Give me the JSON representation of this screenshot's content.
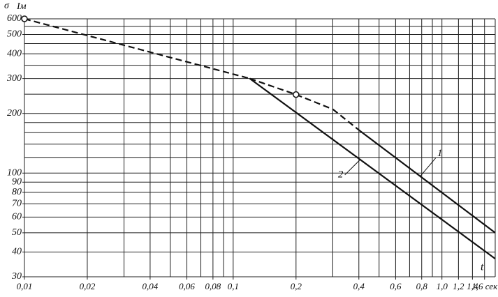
{
  "chart_data": {
    "type": "line",
    "y_axis_label": "σ",
    "y_axis_label2": "Iм",
    "x_axis_label": "t",
    "xscale": "log",
    "yscale": "log",
    "grid": true,
    "xlim": [
      0.01,
      1.8
    ],
    "ylim": [
      30,
      600
    ],
    "xticks": [
      {
        "value": 0.01,
        "label": "0,01"
      },
      {
        "value": 0.02,
        "label": "0,02"
      },
      {
        "value": 0.04,
        "label": "0,04"
      },
      {
        "value": 0.06,
        "label": "0,06"
      },
      {
        "value": 0.08,
        "label": "0,08"
      },
      {
        "value": 0.1,
        "label": "0,1"
      },
      {
        "value": 0.2,
        "label": "0,2"
      },
      {
        "value": 0.4,
        "label": "0,4"
      },
      {
        "value": 0.6,
        "label": "0,6"
      },
      {
        "value": 0.8,
        "label": "0,8"
      },
      {
        "value": 1.0,
        "label": "1,0"
      },
      {
        "value": 1.2,
        "label": "1,2"
      },
      {
        "value": 1.4,
        "label": "1,4"
      },
      {
        "value": 1.6,
        "label": "1,6 сек"
      }
    ],
    "yticks": [
      30,
      40,
      50,
      60,
      70,
      80,
      90,
      100,
      200,
      300,
      400,
      500,
      600
    ],
    "xgrid": [
      0.01,
      0.02,
      0.03,
      0.04,
      0.05,
      0.06,
      0.07,
      0.08,
      0.09,
      0.1,
      0.2,
      0.3,
      0.4,
      0.5,
      0.6,
      0.7,
      0.8,
      0.9,
      1.0,
      1.2,
      1.4,
      1.6,
      1.8
    ],
    "ygrid": [
      30,
      40,
      50,
      60,
      70,
      80,
      90,
      100,
      120,
      140,
      160,
      180,
      200,
      250,
      300,
      350,
      400,
      450,
      500,
      550,
      600
    ],
    "series": [
      {
        "name": "1",
        "color": "#111111",
        "x": [
          0.01,
          0.12,
          0.2,
          0.3,
          0.4,
          1.8
        ],
        "values": [
          600,
          300,
          249,
          210,
          165,
          50
        ],
        "segment_styles": [
          "dashed",
          "dashed",
          "dashed",
          "dashed",
          "solid"
        ],
        "markers_at": [
          0,
          2
        ]
      },
      {
        "name": "2",
        "color": "#111111",
        "x": [
          0.12,
          1.8
        ],
        "values": [
          300,
          37
        ]
      }
    ]
  }
}
